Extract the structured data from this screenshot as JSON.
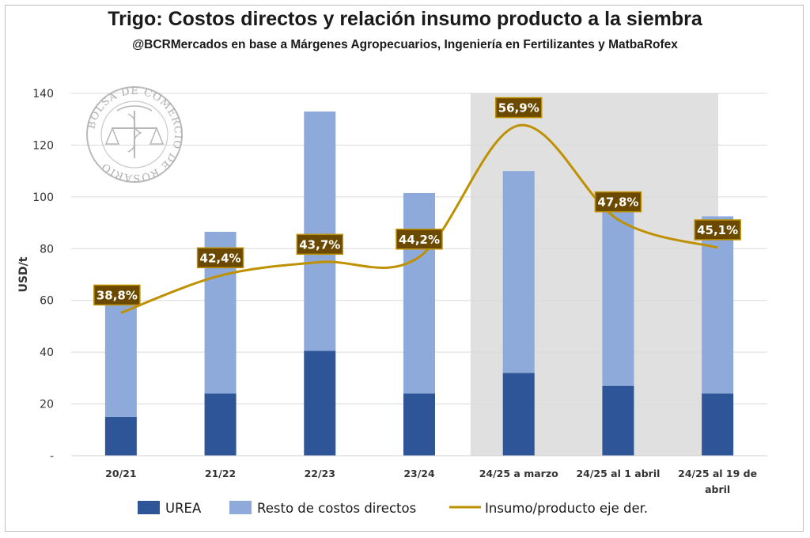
{
  "chart_data": {
    "type": "bar",
    "stacked": true,
    "title": "Trigo: Costos directos y relación insumo producto a la siembra",
    "subtitle": "@BCRMercados  en base a Márgenes Agropecuarios, Ingeniería en Fertilizantes y MatbaRofex",
    "ylabel": "USD/t",
    "ylim": [
      0,
      140
    ],
    "yticks": [
      0,
      20,
      40,
      60,
      80,
      100,
      120,
      140
    ],
    "ytick_labels": [
      "-",
      "20",
      "40",
      "60",
      "80",
      "100",
      "120",
      "140"
    ],
    "categories": [
      "20/21",
      "21/22",
      "22/23",
      "23/24",
      "24/25 a marzo",
      "24/25 al 1 abril",
      "24/25 al 19 de abril"
    ],
    "category_lines": [
      [
        "20/21"
      ],
      [
        "21/22"
      ],
      [
        "22/23"
      ],
      [
        "23/24"
      ],
      [
        "24/25 a marzo"
      ],
      [
        "24/25 al 1 abril"
      ],
      [
        "24/25 al 19 de",
        "abril"
      ]
    ],
    "series": [
      {
        "name": "UREA",
        "values": [
          15,
          24,
          40.5,
          24,
          32,
          27,
          24
        ],
        "color": "#2e5597"
      },
      {
        "name": "Resto de costos directos",
        "values": [
          49.5,
          62.5,
          92.5,
          77.5,
          78,
          68.5,
          68.5
        ],
        "color": "#8eaadb"
      },
      {
        "name": "Insumo/producto eje der.",
        "type": "line",
        "axis": "secondary",
        "values": [
          38.8,
          42.4,
          43.7,
          44.2,
          56.9,
          47.8,
          45.1
        ],
        "labels": [
          "38,8%",
          "42,4%",
          "43,7%",
          "44,2%",
          "56,9%",
          "47,8%",
          "45,1%"
        ],
        "color": "#bf9000"
      }
    ],
    "highlight_categories": [
      "24/25 a marzo",
      "24/25 al 1 abril",
      "24/25 al 19 de abril"
    ],
    "legend_position": "bottom",
    "colors": {
      "label_bg": "#6b4a00",
      "highlight": "#e0e0e0",
      "grid": "#d9d9d9"
    }
  },
  "watermark": {
    "text": "BOLSA DE COMERCIO DE ROSARIO"
  }
}
